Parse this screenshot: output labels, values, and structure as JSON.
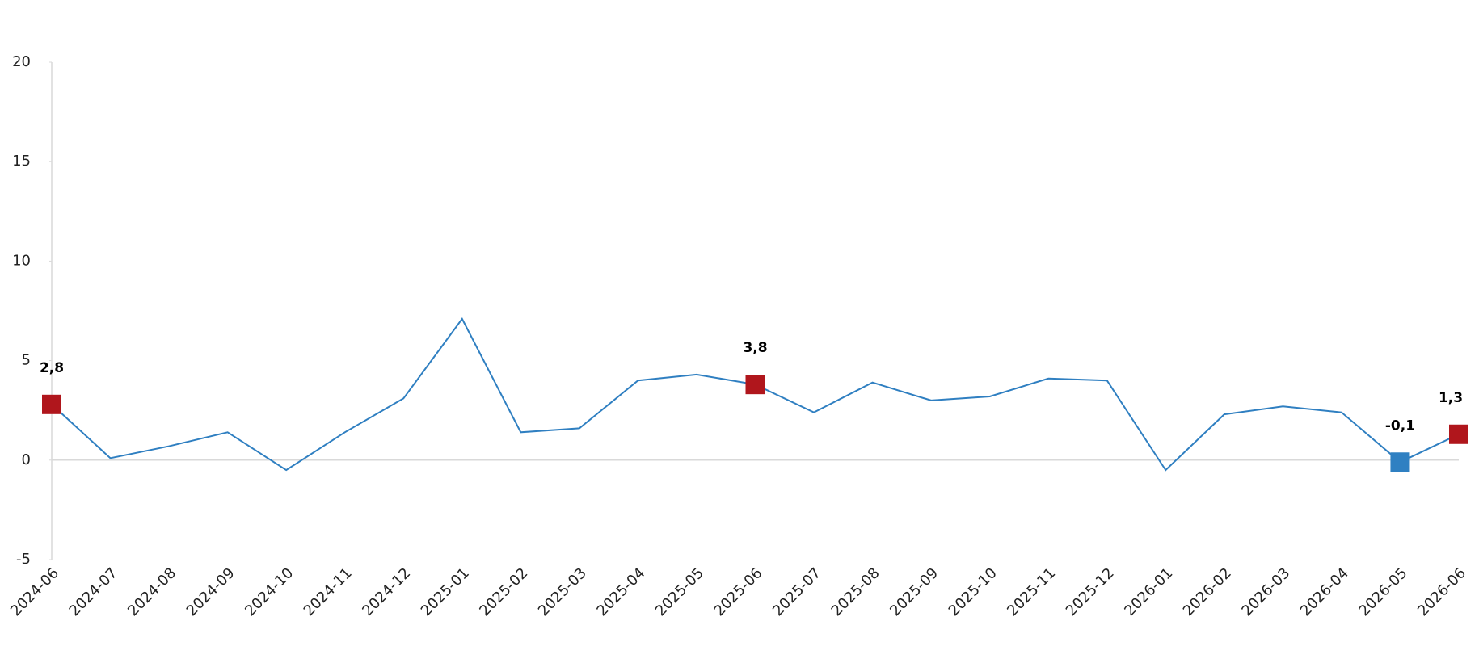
{
  "chart_data": {
    "type": "line",
    "categories": [
      "2024-06",
      "2024-07",
      "2024-08",
      "2024-09",
      "2024-10",
      "2024-11",
      "2024-12",
      "2025-01",
      "2025-02",
      "2025-03",
      "2025-04",
      "2025-05",
      "2025-06",
      "2025-07",
      "2025-08",
      "2025-09",
      "2025-10",
      "2025-11",
      "2025-12",
      "2026-01",
      "2026-02",
      "2026-03",
      "2026-04",
      "2026-05",
      "2026-06"
    ],
    "values": [
      2.8,
      0.1,
      0.7,
      1.4,
      -0.5,
      1.4,
      3.1,
      7.1,
      1.4,
      1.6,
      4.0,
      4.3,
      3.8,
      2.4,
      3.9,
      3.0,
      3.2,
      4.1,
      4.0,
      -0.5,
      2.3,
      2.7,
      2.4,
      -0.1,
      1.3
    ],
    "value_labels": [
      "2,8",
      null,
      null,
      null,
      null,
      null,
      null,
      null,
      null,
      null,
      null,
      null,
      "3,8",
      null,
      null,
      null,
      null,
      null,
      null,
      null,
      null,
      null,
      null,
      "-0,1",
      "1,3"
    ],
    "marker_colors": [
      "#b0161c",
      null,
      null,
      null,
      null,
      null,
      null,
      null,
      null,
      null,
      null,
      null,
      "#b0161c",
      null,
      null,
      null,
      null,
      null,
      null,
      null,
      null,
      null,
      null,
      "#2f80c2",
      "#b0161c"
    ],
    "color": "#2f7fc1",
    "ylim": [
      -5,
      20
    ],
    "yticks": [
      -5,
      0,
      5,
      10,
      15,
      20
    ],
    "zero_line": true
  }
}
